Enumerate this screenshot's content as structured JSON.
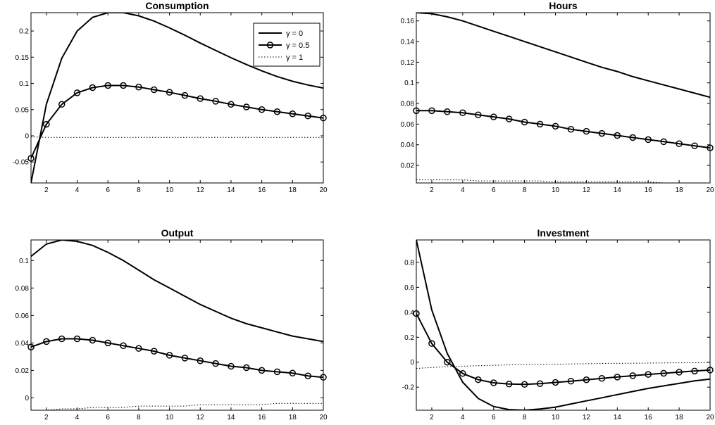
{
  "chart_data": [
    {
      "type": "line",
      "title": "Consumption",
      "xlim": [
        1,
        20
      ],
      "ylim": [
        -0.09,
        0.235
      ],
      "xticks": [
        2,
        4,
        6,
        8,
        10,
        12,
        14,
        16,
        18,
        20
      ],
      "yticks": [
        -0.05,
        0,
        0.05,
        0.1,
        0.15,
        0.2
      ],
      "ytick_labels": [
        "-0.05",
        "0",
        "0.05",
        "0.1",
        "0.15",
        "0.2"
      ],
      "x": [
        1,
        2,
        3,
        4,
        5,
        6,
        7,
        8,
        9,
        10,
        11,
        12,
        13,
        14,
        15,
        16,
        17,
        18,
        19,
        20
      ],
      "series": [
        {
          "name": "γ = 0",
          "style": "solid",
          "values": [
            -0.09,
            0.06,
            0.148,
            0.2,
            0.226,
            0.235,
            0.235,
            0.229,
            0.219,
            0.206,
            0.192,
            0.177,
            0.163,
            0.149,
            0.136,
            0.124,
            0.113,
            0.104,
            0.097,
            0.091
          ]
        },
        {
          "name": "γ = 0.5",
          "style": "circle",
          "values": [
            -0.043,
            0.022,
            0.06,
            0.082,
            0.092,
            0.096,
            0.096,
            0.093,
            0.088,
            0.083,
            0.077,
            0.071,
            0.066,
            0.06,
            0.055,
            0.05,
            0.046,
            0.042,
            0.038,
            0.034
          ]
        },
        {
          "name": "γ = 1",
          "style": "dotted",
          "values": [
            -0.002,
            -0.003,
            -0.003,
            -0.003,
            -0.003,
            -0.003,
            -0.003,
            -0.003,
            -0.003,
            -0.003,
            -0.003,
            -0.003,
            -0.003,
            -0.003,
            -0.003,
            -0.003,
            -0.003,
            -0.003,
            -0.003,
            -0.003
          ]
        }
      ],
      "legend": {
        "location": "top-right",
        "entries": [
          "γ = 0",
          "γ = 0.5",
          "γ = 1"
        ]
      }
    },
    {
      "type": "line",
      "title": "Hours",
      "xlim": [
        1,
        20
      ],
      "ylim": [
        0.003,
        0.168
      ],
      "xticks": [
        2,
        4,
        6,
        8,
        10,
        12,
        14,
        16,
        18,
        20
      ],
      "yticks": [
        0.02,
        0.04,
        0.06,
        0.08,
        0.1,
        0.12,
        0.14,
        0.16
      ],
      "ytick_labels": [
        "0.02",
        "0.04",
        "0.06",
        "0.08",
        "0.1",
        "0.12",
        "0.14",
        "0.16"
      ],
      "x": [
        1,
        2,
        3,
        4,
        5,
        6,
        7,
        8,
        9,
        10,
        11,
        12,
        13,
        14,
        15,
        16,
        17,
        18,
        19,
        20
      ],
      "series": [
        {
          "name": "γ = 0",
          "style": "solid",
          "values": [
            0.168,
            0.167,
            0.164,
            0.16,
            0.155,
            0.15,
            0.145,
            0.14,
            0.135,
            0.13,
            0.125,
            0.12,
            0.115,
            0.111,
            0.106,
            0.102,
            0.098,
            0.094,
            0.09,
            0.086
          ]
        },
        {
          "name": "γ = 0.5",
          "style": "circle",
          "values": [
            0.073,
            0.073,
            0.072,
            0.071,
            0.069,
            0.067,
            0.065,
            0.062,
            0.06,
            0.058,
            0.055,
            0.053,
            0.051,
            0.049,
            0.047,
            0.045,
            0.043,
            0.041,
            0.039,
            0.037
          ]
        },
        {
          "name": "γ = 1",
          "style": "dotted",
          "values": [
            0.006,
            0.006,
            0.006,
            0.006,
            0.005,
            0.005,
            0.005,
            0.005,
            0.005,
            0.004,
            0.004,
            0.004,
            0.004,
            0.004,
            0.004,
            0.004,
            0.003,
            0.003,
            0.003,
            0.003
          ]
        }
      ]
    },
    {
      "type": "line",
      "title": "Output",
      "xlim": [
        1,
        20
      ],
      "ylim": [
        -0.009,
        0.115
      ],
      "xticks": [
        2,
        4,
        6,
        8,
        10,
        12,
        14,
        16,
        18,
        20
      ],
      "yticks": [
        0,
        0.02,
        0.04,
        0.06,
        0.08,
        0.1
      ],
      "ytick_labels": [
        "0",
        "0.02",
        "0.04",
        "0.06",
        "0.08",
        "0.1"
      ],
      "x": [
        1,
        2,
        3,
        4,
        5,
        6,
        7,
        8,
        9,
        10,
        11,
        12,
        13,
        14,
        15,
        16,
        17,
        18,
        19,
        20
      ],
      "series": [
        {
          "name": "γ = 0",
          "style": "solid",
          "values": [
            0.103,
            0.112,
            0.115,
            0.114,
            0.111,
            0.106,
            0.1,
            0.093,
            0.086,
            0.08,
            0.074,
            0.068,
            0.063,
            0.058,
            0.054,
            0.051,
            0.048,
            0.045,
            0.043,
            0.041
          ]
        },
        {
          "name": "γ = 0.5",
          "style": "circle",
          "values": [
            0.037,
            0.041,
            0.043,
            0.043,
            0.042,
            0.04,
            0.038,
            0.036,
            0.034,
            0.031,
            0.029,
            0.027,
            0.025,
            0.023,
            0.022,
            0.02,
            0.019,
            0.018,
            0.016,
            0.015
          ]
        },
        {
          "name": "γ = 1",
          "style": "dotted",
          "values": [
            -0.009,
            -0.009,
            -0.008,
            -0.008,
            -0.007,
            -0.007,
            -0.007,
            -0.006,
            -0.006,
            -0.006,
            -0.006,
            -0.005,
            -0.005,
            -0.005,
            -0.005,
            -0.005,
            -0.004,
            -0.004,
            -0.004,
            -0.004
          ]
        }
      ]
    },
    {
      "type": "line",
      "title": "Investment",
      "xlim": [
        1,
        20
      ],
      "ylim": [
        -0.385,
        0.98
      ],
      "xticks": [
        2,
        4,
        6,
        8,
        10,
        12,
        14,
        16,
        18,
        20
      ],
      "yticks": [
        -0.2,
        0,
        0.2,
        0.4,
        0.6,
        0.8
      ],
      "ytick_labels": [
        "-0.2",
        "0",
        "0.2",
        "0.4",
        "0.6",
        "0.8"
      ],
      "x": [
        1,
        2,
        3,
        4,
        5,
        6,
        7,
        8,
        9,
        10,
        11,
        12,
        13,
        14,
        15,
        16,
        17,
        18,
        19,
        20
      ],
      "series": [
        {
          "name": "γ = 0",
          "style": "solid",
          "values": [
            0.98,
            0.42,
            0.07,
            -0.16,
            -0.29,
            -0.355,
            -0.38,
            -0.385,
            -0.375,
            -0.36,
            -0.335,
            -0.31,
            -0.285,
            -0.26,
            -0.235,
            -0.21,
            -0.19,
            -0.17,
            -0.15,
            -0.135
          ]
        },
        {
          "name": "γ = 0.5",
          "style": "circle",
          "values": [
            0.39,
            0.15,
            0.0,
            -0.09,
            -0.14,
            -0.165,
            -0.175,
            -0.178,
            -0.172,
            -0.162,
            -0.152,
            -0.141,
            -0.13,
            -0.119,
            -0.108,
            -0.098,
            -0.089,
            -0.08,
            -0.071,
            -0.063
          ]
        },
        {
          "name": "γ = 1",
          "style": "dotted",
          "values": [
            -0.05,
            -0.042,
            -0.036,
            -0.032,
            -0.028,
            -0.025,
            -0.022,
            -0.02,
            -0.018,
            -0.016,
            -0.014,
            -0.012,
            -0.01,
            -0.009,
            -0.008,
            -0.007,
            -0.006,
            -0.005,
            -0.004,
            -0.003
          ]
        }
      ]
    }
  ]
}
